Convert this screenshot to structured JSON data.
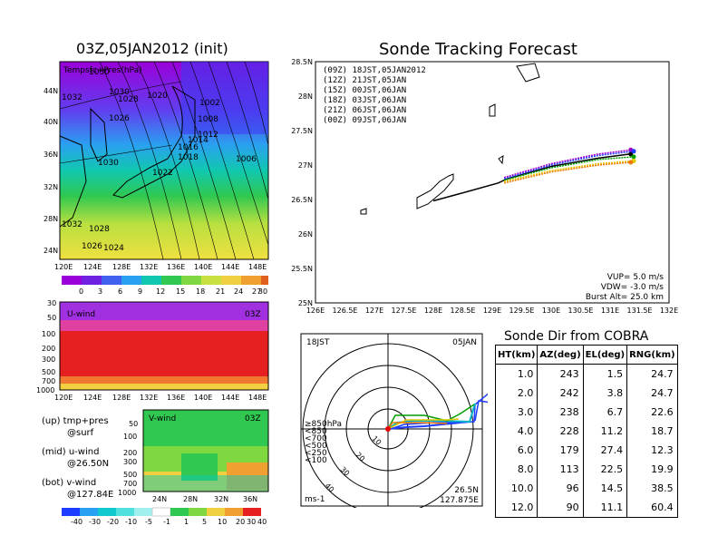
{
  "map_panel": {
    "title": "03Z,05JAN2012 (init)",
    "field_label": "Tempsfc+Pres(hPa)",
    "isobar_labels": [
      "1030",
      "1032",
      "1028",
      "1020",
      "1030",
      "1026",
      "1002",
      "1008",
      "1012",
      "1014",
      "1016",
      "1018",
      "1006",
      "1030",
      "1022",
      "1032",
      "1028",
      "1026",
      "1024"
    ],
    "lat_ticks": [
      "44N",
      "40N",
      "36N",
      "32N",
      "28N",
      "24N"
    ],
    "lon_ticks": [
      "120E",
      "124E",
      "128E",
      "132E",
      "136E",
      "140E",
      "144E",
      "148E"
    ],
    "colorbar_labels": [
      "0",
      "3",
      "6",
      "9",
      "12",
      "15",
      "18",
      "21",
      "24",
      "27",
      "30"
    ]
  },
  "u_panel": {
    "label": "U-wind",
    "time": "03Z",
    "p_ticks": [
      "30",
      "50",
      "100",
      "200",
      "300",
      "500",
      "700",
      "1000"
    ],
    "lon_ticks": [
      "120E",
      "124E",
      "128E",
      "132E",
      "136E",
      "140E",
      "144E",
      "148E"
    ]
  },
  "v_panel": {
    "label": "V-wind",
    "time": "03Z",
    "p_ticks": [
      "50",
      "100",
      "200",
      "300",
      "500",
      "700",
      "1000"
    ],
    "lat_ticks": [
      "24N",
      "28N",
      "32N",
      "36N"
    ],
    "colorbar_labels": [
      "-40",
      "-30",
      "-20",
      "-10",
      "-5",
      "-1",
      "1",
      "5",
      "10",
      "20",
      "30",
      "40"
    ]
  },
  "legend_notes": [
    {
      "line1": "(up) tmp+pres",
      "line2": "@surf"
    },
    {
      "line1": "(mid) u-wind",
      "line2": "@26.50N"
    },
    {
      "line1": "(bot) v-wind",
      "line2": "@127.84E"
    }
  ],
  "track_panel": {
    "title": "Sonde Tracking Forecast",
    "lat_ticks": [
      "28.5N",
      "28N",
      "27.5N",
      "27N",
      "26.5N",
      "26N",
      "25.5N",
      "25N"
    ],
    "lon_ticks": [
      "126E",
      "126.5E",
      "127E",
      "127.5E",
      "128E",
      "128.5E",
      "129E",
      "129.5E",
      "130E",
      "130.5E",
      "131E",
      "131.5E",
      "132E"
    ],
    "legend": [
      {
        "text": "(09Z)  18JST,05JAN2012",
        "color": "#000000"
      },
      {
        "text": "(12Z)  21JST,05JAN",
        "color": "#a000c8"
      },
      {
        "text": "(15Z)  00JST,06JAN",
        "color": "#1e3cff"
      },
      {
        "text": "(18Z)  03JST,06JAN",
        "color": "#00a000"
      },
      {
        "text": "(21Z)  06JST,06JAN",
        "color": "#e6c800"
      },
      {
        "text": "(00Z)  09JST,06JAN",
        "color": "#f07800"
      }
    ],
    "params": [
      "VUP=  5.0 m/s",
      "VDW= -3.0 m/s",
      "Burst Alt=  25.0 km"
    ]
  },
  "polar_panel": {
    "time_label": "18JST",
    "date_label": "05JAN",
    "ring_labels": [
      "10",
      "20",
      "30",
      "40"
    ],
    "legend": [
      {
        "text": "≥850hPa",
        "color": "#e60000"
      },
      {
        "text": "<850",
        "color": "#f07800"
      },
      {
        "text": "<700",
        "color": "#e6c800"
      },
      {
        "text": "<500",
        "color": "#00a000"
      },
      {
        "text": "<250",
        "color": "#00b4c8"
      },
      {
        "text": "<100",
        "color": "#1e3cff"
      }
    ],
    "unit": "ms-1",
    "loc_lat": "26.5N",
    "loc_lon": "127.875E"
  },
  "sonde_table": {
    "title": "Sonde Dir from COBRA",
    "headers": [
      "HT(km)",
      "AZ(deg)",
      "EL(deg)",
      "RNG(km)"
    ],
    "rows": [
      [
        "1.0",
        "243",
        "1.5",
        "24.7"
      ],
      [
        "2.0",
        "242",
        "3.8",
        "24.7"
      ],
      [
        "3.0",
        "238",
        "6.7",
        "22.6"
      ],
      [
        "4.0",
        "228",
        "11.2",
        "18.7"
      ],
      [
        "6.0",
        "179",
        "27.4",
        "12.3"
      ],
      [
        "8.0",
        "113",
        "22.5",
        "19.9"
      ],
      [
        "10.0",
        "96",
        "14.5",
        "38.5"
      ],
      [
        "12.0",
        "90",
        "11.1",
        "60.4"
      ]
    ]
  },
  "chart_data": [
    {
      "type": "line",
      "title": "Sonde Tracking Forecast",
      "xlabel": "",
      "ylabel": "",
      "xlim": [
        126,
        132
      ],
      "ylim": [
        25,
        28.5
      ],
      "series": [
        {
          "name": "(09Z)  18JST,05JAN2012",
          "x": [
            128.0,
            128.6,
            129.1,
            129.25,
            130.0,
            130.8,
            131.35
          ],
          "y": [
            26.48,
            26.62,
            26.74,
            26.8,
            26.98,
            27.1,
            27.16
          ]
        },
        {
          "name": "(12Z)  21JST,05JAN",
          "x": [
            129.2,
            130.0,
            130.8,
            131.35
          ],
          "y": [
            26.82,
            27.02,
            27.16,
            27.22
          ]
        },
        {
          "name": "(15Z)  00JST,06JAN",
          "x": [
            129.2,
            130.0,
            130.8,
            131.4
          ],
          "y": [
            26.8,
            27.0,
            27.14,
            27.2
          ]
        },
        {
          "name": "(18Z)  03JST,06JAN",
          "x": [
            129.2,
            130.0,
            130.8,
            131.4
          ],
          "y": [
            26.78,
            26.96,
            27.08,
            27.12
          ]
        },
        {
          "name": "(21Z)  06JST,06JAN",
          "x": [
            129.2,
            130.0,
            130.8,
            131.4
          ],
          "y": [
            26.76,
            26.92,
            27.02,
            27.06
          ]
        },
        {
          "name": "(00Z)  09JST,06JAN",
          "x": [
            129.2,
            130.0,
            130.8,
            131.35
          ],
          "y": [
            26.74,
            26.9,
            27.0,
            27.04
          ]
        }
      ]
    },
    {
      "type": "table",
      "title": "Sonde Dir from COBRA",
      "columns": [
        "HT(km)",
        "AZ(deg)",
        "EL(deg)",
        "RNG(km)"
      ],
      "rows": [
        [
          1.0,
          243,
          1.5,
          24.7
        ],
        [
          2.0,
          242,
          3.8,
          24.7
        ],
        [
          3.0,
          238,
          6.7,
          22.6
        ],
        [
          4.0,
          228,
          11.2,
          18.7
        ],
        [
          6.0,
          179,
          27.4,
          12.3
        ],
        [
          8.0,
          113,
          22.5,
          19.9
        ],
        [
          10.0,
          96,
          14.5,
          38.5
        ],
        [
          12.0,
          90,
          11.1,
          60.4
        ]
      ]
    }
  ]
}
